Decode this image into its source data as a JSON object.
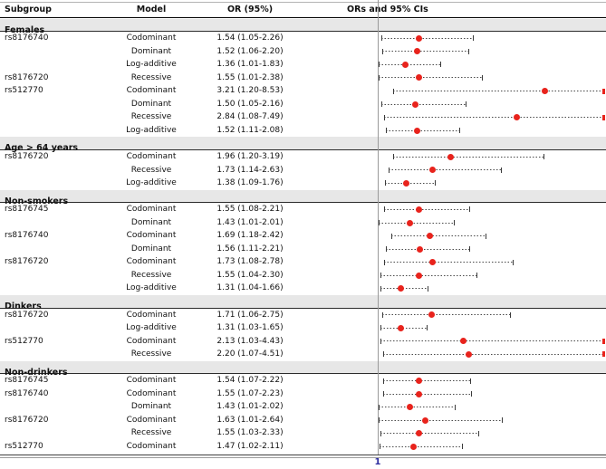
{
  "chart_data": {
    "type": "forest",
    "title": "",
    "columns": [
      "Subgroup",
      "Model",
      "OR (95%)",
      "ORs and 95% CIs"
    ],
    "x_axis": {
      "scale": "linear",
      "reference_line_at": 1,
      "tick_label": "1"
    },
    "colors": {
      "marker": "#e8231c",
      "ci_line": "#4a4a4a",
      "section_band": "#e7e7e7",
      "tick_label": "#2d2d9f"
    },
    "sections": [
      {
        "label": "Females",
        "rows": [
          {
            "subgroup": "rs8176740",
            "model": "Codominant",
            "or_text": "1.54 (1.05-2.26)",
            "or": 1.54,
            "lo": 1.05,
            "hi": 2.26
          },
          {
            "subgroup": "",
            "model": "Dominant",
            "or_text": "1.52 (1.06-2.20)",
            "or": 1.52,
            "lo": 1.06,
            "hi": 2.2
          },
          {
            "subgroup": "",
            "model": "Log-additive",
            "or_text": "1.36 (1.01-1.83)",
            "or": 1.36,
            "lo": 1.01,
            "hi": 1.83
          },
          {
            "subgroup": "rs8176720",
            "model": "Recessive",
            "or_text": "1.55 (1.01-2.38)",
            "or": 1.55,
            "lo": 1.01,
            "hi": 2.38
          },
          {
            "subgroup": "rs512770",
            "model": "Codominant",
            "or_text": "3.21 (1.20-8.53)",
            "or": 3.21,
            "lo": 1.2,
            "hi": 8.53
          },
          {
            "subgroup": "",
            "model": "Dominant",
            "or_text": "1.50 (1.05-2.16)",
            "or": 1.5,
            "lo": 1.05,
            "hi": 2.16
          },
          {
            "subgroup": "",
            "model": "Recessive",
            "or_text": "2.84 (1.08-7.49)",
            "or": 2.84,
            "lo": 1.08,
            "hi": 7.49
          },
          {
            "subgroup": "",
            "model": "Log-additive",
            "or_text": "1.52 (1.11-2.08)",
            "or": 1.52,
            "lo": 1.11,
            "hi": 2.08
          }
        ]
      },
      {
        "label": "Age > 64 years",
        "rows": [
          {
            "subgroup": "rs8176720",
            "model": "Codominant",
            "or_text": "1.96 (1.20-3.19)",
            "or": 1.96,
            "lo": 1.2,
            "hi": 3.19
          },
          {
            "subgroup": "",
            "model": "Recessive",
            "or_text": "1.73 (1.14-2.63)",
            "or": 1.73,
            "lo": 1.14,
            "hi": 2.63
          },
          {
            "subgroup": "",
            "model": "Log-additive",
            "or_text": "1.38 (1.09-1.76)",
            "or": 1.38,
            "lo": 1.09,
            "hi": 1.76
          }
        ]
      },
      {
        "label": "Non-smokers",
        "rows": [
          {
            "subgroup": "rs8176745",
            "model": "Codominant",
            "or_text": "1.55 (1.08-2.21)",
            "or": 1.55,
            "lo": 1.08,
            "hi": 2.21
          },
          {
            "subgroup": "",
            "model": "Dominant",
            "or_text": "1.43 (1.01-2.01)",
            "or": 1.43,
            "lo": 1.01,
            "hi": 2.01
          },
          {
            "subgroup": "rs8176740",
            "model": "Codominant",
            "or_text": "1.69 (1.18-2.42)",
            "or": 1.69,
            "lo": 1.18,
            "hi": 2.42
          },
          {
            "subgroup": "",
            "model": "Dominant",
            "or_text": "1.56 (1.11-2.21)",
            "or": 1.56,
            "lo": 1.11,
            "hi": 2.21
          },
          {
            "subgroup": "rs8176720",
            "model": "Codominant",
            "or_text": "1.73 (1.08-2.78)",
            "or": 1.73,
            "lo": 1.08,
            "hi": 2.78
          },
          {
            "subgroup": "",
            "model": "Recessive",
            "or_text": "1.55 (1.04-2.30)",
            "or": 1.55,
            "lo": 1.04,
            "hi": 2.3
          },
          {
            "subgroup": "",
            "model": "Log-additive",
            "or_text": "1.31 (1.04-1.66)",
            "or": 1.31,
            "lo": 1.04,
            "hi": 1.66
          }
        ]
      },
      {
        "label": "Dinkers",
        "rows": [
          {
            "subgroup": "rs8176720",
            "model": "Codominant",
            "or_text": "1.71 (1.06-2.75)",
            "or": 1.71,
            "lo": 1.06,
            "hi": 2.75
          },
          {
            "subgroup": "",
            "model": "Log-additive",
            "or_text": "1.31 (1.03-1.65)",
            "or": 1.31,
            "lo": 1.03,
            "hi": 1.65
          },
          {
            "subgroup": "rs512770",
            "model": "Codominant",
            "or_text": "2.13 (1.03-4.43)",
            "or": 2.13,
            "lo": 1.03,
            "hi": 4.43
          },
          {
            "subgroup": "",
            "model": "Recessive",
            "or_text": "2.20 (1.07-4.51)",
            "or": 2.2,
            "lo": 1.07,
            "hi": 4.51
          }
        ]
      },
      {
        "label": "Non-drinkers",
        "rows": [
          {
            "subgroup": "rs8176745",
            "model": "Codominant",
            "or_text": "1.54 (1.07-2.22)",
            "or": 1.54,
            "lo": 1.07,
            "hi": 2.22
          },
          {
            "subgroup": "rs8176740",
            "model": "Codominant",
            "or_text": "1.55 (1.07-2.23)",
            "or": 1.55,
            "lo": 1.07,
            "hi": 2.23
          },
          {
            "subgroup": "",
            "model": "Dominant",
            "or_text": "1.43 (1.01-2.02)",
            "or": 1.43,
            "lo": 1.01,
            "hi": 2.02
          },
          {
            "subgroup": "rs8176720",
            "model": "Codominant",
            "or_text": "1.63 (1.01-2.64)",
            "or": 1.63,
            "lo": 1.01,
            "hi": 2.64
          },
          {
            "subgroup": "",
            "model": "Recessive",
            "or_text": "1.55 (1.03-2.33)",
            "or": 1.55,
            "lo": 1.03,
            "hi": 2.33
          },
          {
            "subgroup": "rs512770",
            "model": "Codominant",
            "or_text": "1.47 (1.02-2.11)",
            "or": 1.47,
            "lo": 1.02,
            "hi": 2.11
          }
        ]
      }
    ]
  }
}
